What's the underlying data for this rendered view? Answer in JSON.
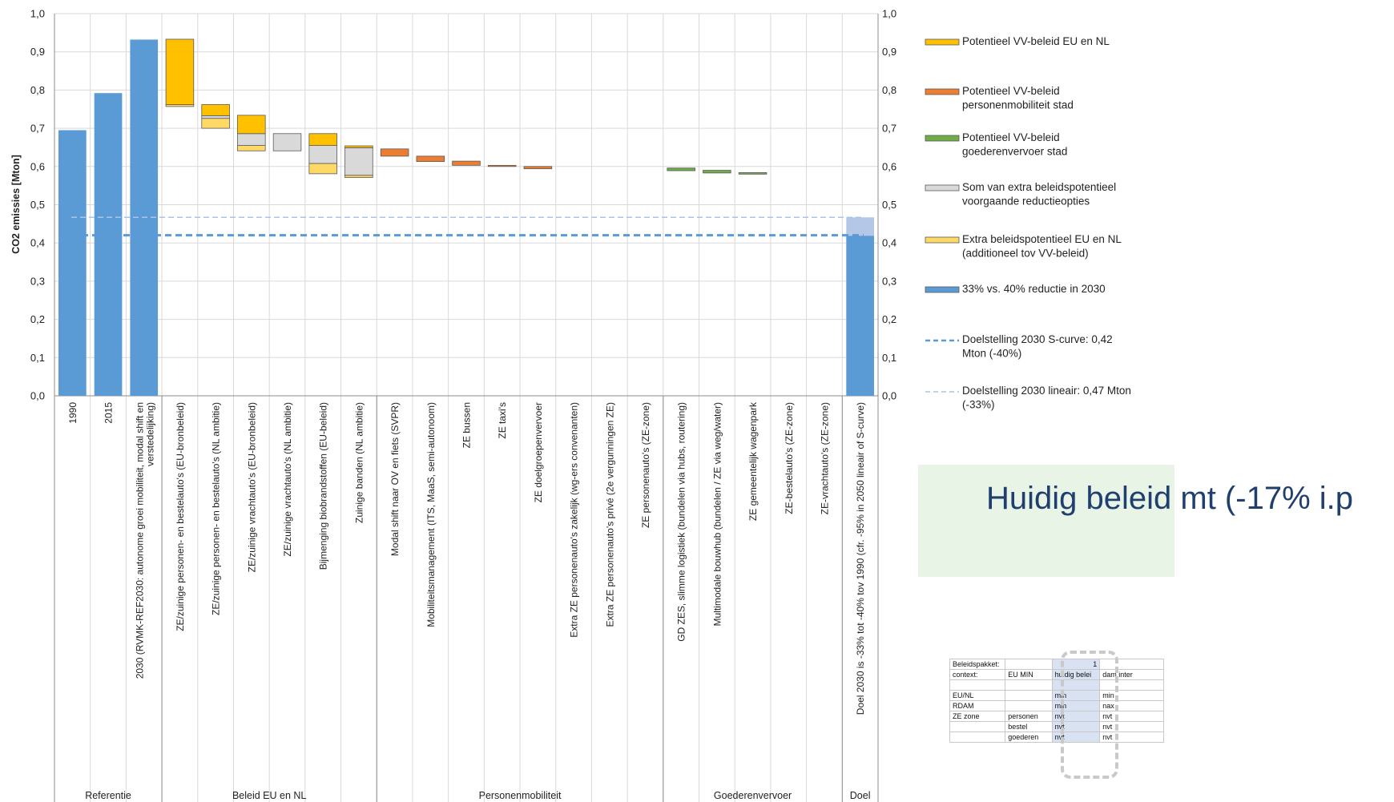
{
  "chart_data": {
    "type": "bar",
    "ylabel": "CO2 emissies [Mton]",
    "ylim": [
      0,
      1.0
    ],
    "yticks": [
      "0,0",
      "0,1",
      "0,2",
      "0,3",
      "0,4",
      "0,5",
      "0,6",
      "0,7",
      "0,8",
      "0,9",
      "1,0"
    ],
    "grid": true,
    "categories": [
      "1990",
      "2015",
      "2030 (RVMK-REF2030: autonome groei mobiliteit, modal shift en verstedelijking)",
      "ZE/zuinige personen- en bestelauto's (EU-bronbeleid)",
      "ZE/zuinige personen- en bestelauto's (NL ambitie)",
      "ZE/zuinige vrachtauto's (EU-bronbeleid)",
      "ZE/zuinige vrachtauto's (NL ambitie)",
      "Bijmenging biobrandstoffen (EU-beleid)",
      "Zuinige banden (NL ambitie)",
      "Modal shift naar OV en fiets (SVPR)",
      "Mobiliteitsmanagement (ITS, MaaS, semi-autonoom)",
      "ZE bussen",
      "ZE taxi's",
      "ZE doelgroepenvervoer",
      "Extra ZE personenauto's zakelijk (wg-ers convenanten)",
      "Extra ZE personenauto's privé (2e vergunningen ZE)",
      "ZE personenauto's (ZE-zone)",
      "GD ZES, slimme logistiek (bundelen via hubs, routering)",
      "Multimodale bouwhub (bundelen / ZE via weg/water)",
      "ZE gemeentelijk wagenpark",
      "ZE-bestelauto's (ZE-zone)",
      "ZE-vrachtauto's (ZE-zone)",
      "Doel 2030 is -33% tot -40% tov 1990 (cfr. -95% in 2050 lineair of S-curve)"
    ],
    "groups": [
      {
        "label": "Referentie",
        "from": 0,
        "to": 2
      },
      {
        "label": "Beleid EU en NL",
        "from": 3,
        "to": 8
      },
      {
        "label": "Personenmobiliteit",
        "from": 9,
        "to": 16
      },
      {
        "label": "Goederenvervoer",
        "from": 17,
        "to": 21
      },
      {
        "label": "Doel",
        "from": 22,
        "to": 22
      }
    ],
    "series_legend": [
      {
        "name": "Potentieel VV-beleid EU en NL",
        "color": "#ffc000",
        "kind": "box"
      },
      {
        "name": "Potentieel VV-beleid personenmobiliteit stad",
        "color": "#ed7d31",
        "kind": "box"
      },
      {
        "name": "Potentieel VV-beleid goederenvervoer stad",
        "color": "#70ad47",
        "kind": "box"
      },
      {
        "name": "Som van extra beleidspotentieel voorgaande reductieopties",
        "color": "#d9d9d9",
        "kind": "box"
      },
      {
        "name": "Extra beleidspotentieel EU en NL (additioneel tov VV-beleid)",
        "color": "#ffd966",
        "kind": "box"
      },
      {
        "name": "33% vs. 40% reductie in 2030",
        "color": "#5b9bd5",
        "kind": "box"
      },
      {
        "name": "Doelstelling 2030 S-curve: 0,42 Mton (-40%)",
        "color": "#5b9bd5",
        "kind": "line-dash"
      },
      {
        "name": "Doelstelling 2030 lineair: 0,47 Mton (-33%)",
        "color": "#a9c4ea",
        "kind": "line-dash"
      }
    ],
    "bars": [
      {
        "i": 0,
        "segments": [
          {
            "from": 0,
            "to": 0.695,
            "color": "#5b9bd5"
          }
        ]
      },
      {
        "i": 1,
        "segments": [
          {
            "from": 0,
            "to": 0.792,
            "color": "#5b9bd5"
          }
        ]
      },
      {
        "i": 2,
        "segments": [
          {
            "from": 0,
            "to": 0.932,
            "color": "#5b9bd5"
          }
        ]
      },
      {
        "i": 3,
        "segments": [
          {
            "from": 0.757,
            "to": 0.762,
            "color": "#ffd966"
          },
          {
            "from": 0.762,
            "to": 0.933,
            "color": "#ffc000"
          }
        ]
      },
      {
        "i": 4,
        "segments": [
          {
            "from": 0.7,
            "to": 0.726,
            "color": "#ffd966"
          },
          {
            "from": 0.726,
            "to": 0.733,
            "color": "#d9d9d9"
          },
          {
            "from": 0.733,
            "to": 0.762,
            "color": "#ffc000"
          }
        ]
      },
      {
        "i": 5,
        "segments": [
          {
            "from": 0.641,
            "to": 0.655,
            "color": "#ffd966"
          },
          {
            "from": 0.655,
            "to": 0.686,
            "color": "#d9d9d9"
          },
          {
            "from": 0.686,
            "to": 0.734,
            "color": "#ffc000"
          }
        ]
      },
      {
        "i": 6,
        "segments": [
          {
            "from": 0.641,
            "to": 0.686,
            "color": "#d9d9d9"
          }
        ]
      },
      {
        "i": 7,
        "segments": [
          {
            "from": 0.581,
            "to": 0.608,
            "color": "#ffd966"
          },
          {
            "from": 0.608,
            "to": 0.655,
            "color": "#d9d9d9"
          },
          {
            "from": 0.655,
            "to": 0.686,
            "color": "#ffc000"
          }
        ]
      },
      {
        "i": 8,
        "segments": [
          {
            "from": 0.571,
            "to": 0.577,
            "color": "#ffd966"
          },
          {
            "from": 0.577,
            "to": 0.649,
            "color": "#d9d9d9"
          },
          {
            "from": 0.649,
            "to": 0.654,
            "color": "#ffc000"
          }
        ]
      },
      {
        "i": 9,
        "segments": [
          {
            "from": 0.627,
            "to": 0.646,
            "color": "#ed7d31"
          }
        ]
      },
      {
        "i": 10,
        "segments": [
          {
            "from": 0.613,
            "to": 0.627,
            "color": "#ed7d31"
          }
        ]
      },
      {
        "i": 11,
        "segments": [
          {
            "from": 0.603,
            "to": 0.614,
            "color": "#ed7d31"
          }
        ]
      },
      {
        "i": 12,
        "segments": [
          {
            "from": 0.6,
            "to": 0.603,
            "color": "#ed7d31"
          }
        ]
      },
      {
        "i": 13,
        "segments": [
          {
            "from": 0.594,
            "to": 0.6,
            "color": "#ed7d31"
          }
        ]
      },
      {
        "i": 17,
        "segments": [
          {
            "from": 0.589,
            "to": 0.596,
            "color": "#70ad47"
          }
        ]
      },
      {
        "i": 18,
        "segments": [
          {
            "from": 0.583,
            "to": 0.59,
            "color": "#70ad47"
          }
        ]
      },
      {
        "i": 19,
        "segments": [
          {
            "from": 0.58,
            "to": 0.584,
            "color": "#70ad47"
          }
        ]
      },
      {
        "i": 22,
        "segments": [
          {
            "from": 0,
            "to": 0.419,
            "color": "#5b9bd5"
          },
          {
            "from": 0.419,
            "to": 0.467,
            "color": "#b4c7e7"
          }
        ]
      }
    ],
    "target_lines": [
      {
        "value": 0.42,
        "color": "#5b9bd5",
        "dash": "8,5",
        "width": 3
      },
      {
        "value": 0.467,
        "color": "#a9c4ea",
        "dash": "7,4",
        "width": 1.6
      }
    ]
  },
  "callout": {
    "text": "Huidig beleid mt (-17% i.p"
  },
  "sheet": {
    "rows": [
      [
        "Beleidspakket:",
        "",
        "1",
        ""
      ],
      [
        "context:",
        "EU MIN",
        "huidig belei",
        "dam inter"
      ],
      [
        "",
        "",
        "",
        ""
      ],
      [
        "EU/NL",
        "",
        "min",
        "min"
      ],
      [
        "RDAM",
        "",
        "min",
        "nax"
      ],
      [
        "ZE zone",
        "personen",
        "nvt",
        "nvt"
      ],
      [
        "",
        "bestel",
        "nvt",
        "nvt"
      ],
      [
        "",
        "goederen",
        "nvt",
        "nvt"
      ]
    ]
  }
}
